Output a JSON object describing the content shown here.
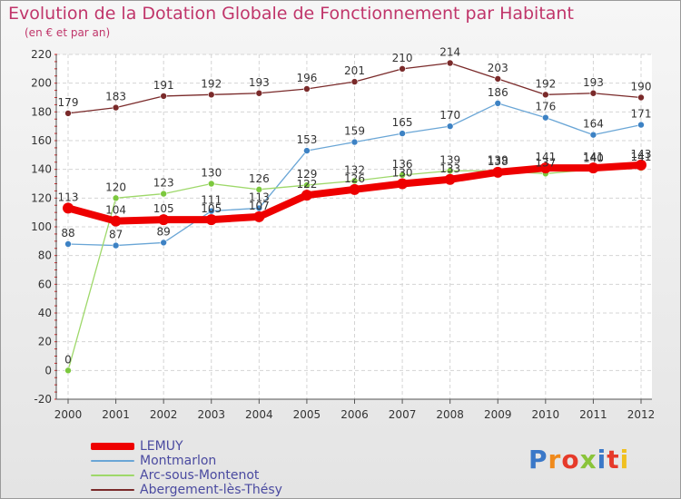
{
  "chart_data": {
    "type": "line",
    "title": "Evolution de la Dotation Globale de Fonctionnement par Habitant",
    "subtitle": "(en € et par an)",
    "xlabel": "",
    "ylabel": "",
    "ylim": [
      -20,
      220
    ],
    "yticks": [
      -20,
      0,
      20,
      40,
      60,
      80,
      100,
      120,
      140,
      160,
      180,
      200,
      220
    ],
    "x": [
      "2000",
      "2001",
      "2002",
      "2003",
      "2004",
      "2005",
      "2006",
      "2007",
      "2008",
      "2009",
      "2010",
      "2011",
      "2012"
    ],
    "grid": true,
    "legend_position": "bottom-left",
    "series": [
      {
        "name": "Abergement-lès-Thésy",
        "color": "#7a2a2a",
        "marker": "#7a2a2a",
        "width": 1.3,
        "values": [
          179,
          183,
          191,
          192,
          193,
          196,
          201,
          210,
          214,
          203,
          192,
          193,
          190
        ]
      },
      {
        "name": "Montmarlon",
        "color": "#6aa6d6",
        "marker": "#3d82c4",
        "width": 1.3,
        "values": [
          88,
          87,
          89,
          111,
          113,
          153,
          159,
          165,
          170,
          186,
          176,
          164,
          171
        ]
      },
      {
        "name": "Arc-sous-Montenot",
        "color": "#9ed86a",
        "marker": "#7cc83e",
        "width": 1.3,
        "values": [
          0,
          120,
          123,
          130,
          126,
          129,
          132,
          136,
          139,
          139,
          137,
          140,
          141
        ]
      },
      {
        "name": "LEMUY",
        "color": "#ee0000",
        "marker": "#ee0000",
        "width": 8,
        "values": [
          113,
          104,
          105,
          105,
          107,
          122,
          126,
          130,
          133,
          138,
          141,
          141,
          143
        ]
      }
    ]
  },
  "legend_items": [
    {
      "name": "LEMUY",
      "color": "#ee0000",
      "thickness": 8
    },
    {
      "name": "Montmarlon",
      "color": "#6aa6d6",
      "thickness": 2
    },
    {
      "name": "Arc-sous-Montenot",
      "color": "#9ed86a",
      "thickness": 2
    },
    {
      "name": "Abergement-lès-Thésy",
      "color": "#7a2a2a",
      "thickness": 2
    }
  ],
  "logo": {
    "text": "Proxiti",
    "letters": [
      "P",
      "r",
      "o",
      "x",
      "i",
      "t",
      "i"
    ],
    "colors": [
      "#3a78c8",
      "#f08a1c",
      "#e63a2a",
      "#8ac43a",
      "#3a78c8",
      "#e63a2a",
      "#f0c020"
    ]
  }
}
